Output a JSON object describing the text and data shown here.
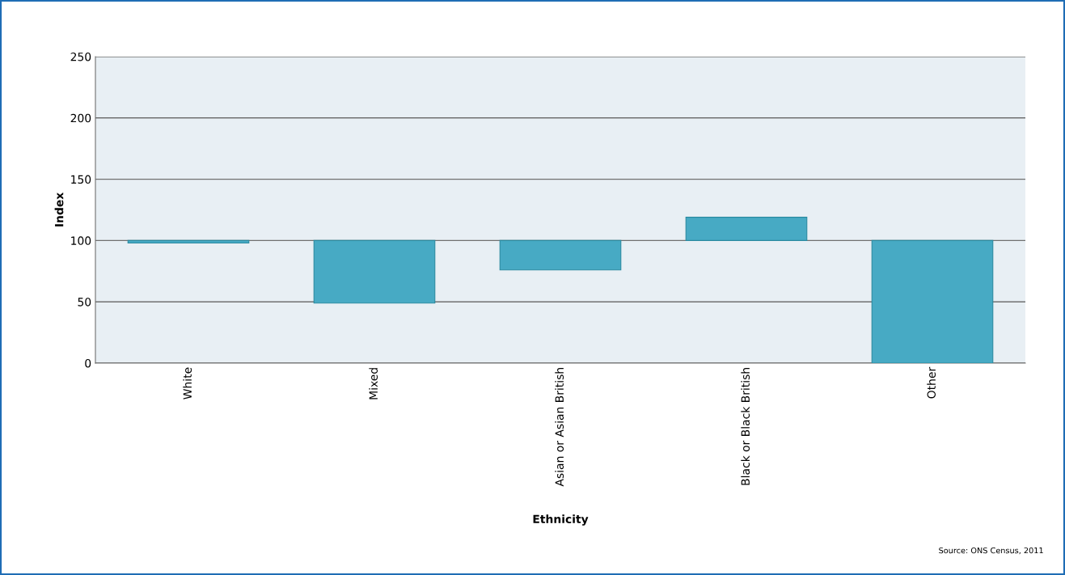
{
  "chart_data": {
    "type": "bar",
    "xlabel": "Ethnicity",
    "ylabel": "Index",
    "categories": [
      "White",
      "Mixed",
      "Asian or Asian British",
      "Black or Black British",
      "Other"
    ],
    "values": [
      -2,
      -51,
      -24,
      19,
      -100
    ],
    "base": [
      100,
      100,
      100,
      100,
      100
    ],
    "color": "#47aac4",
    "ylim": [
      0,
      250
    ],
    "yticks": [
      0,
      50,
      100,
      150,
      200,
      250
    ],
    "grid": "y",
    "annotations": [
      "Source: ONS Census, 2011"
    ]
  }
}
